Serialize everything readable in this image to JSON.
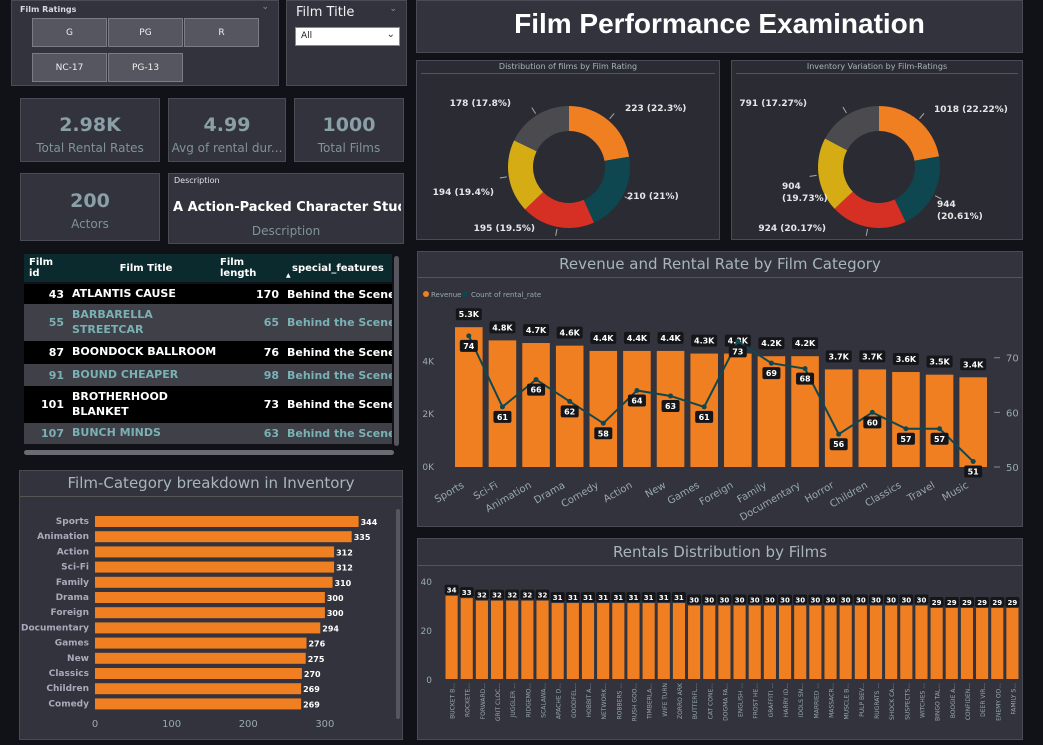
{
  "slicer": {
    "title": "Film Ratings",
    "options": [
      "G",
      "PG",
      "R",
      "NC-17",
      "PG-13"
    ]
  },
  "film_title_filter": {
    "title": "Film Title",
    "selected": "All"
  },
  "main_title": "Film Performance Examination",
  "cards": {
    "rental_rates": {
      "value": "2.98K",
      "label": "Total Rental Rates"
    },
    "avg_duration": {
      "value": "4.99",
      "label": "Avg of rental dur..."
    },
    "total_films": {
      "value": "1000",
      "label": "Total Films"
    },
    "actors": {
      "value": "200",
      "label": "Actors"
    },
    "description": {
      "header": "Description",
      "value": "A Action-Packed Character Stud...",
      "label": "Description"
    }
  },
  "table": {
    "columns": [
      "Film id",
      "Film Title",
      "Film length",
      "special_features"
    ],
    "rows": [
      {
        "id": "43",
        "title": "ATLANTIS CAUSE",
        "length": "170",
        "features": "Behind the Scenes"
      },
      {
        "id": "55",
        "title": "BARBARELLA STREETCAR",
        "length": "65",
        "features": "Behind the Scenes"
      },
      {
        "id": "87",
        "title": "BOONDOCK BALLROOM",
        "length": "76",
        "features": "Behind the Scenes"
      },
      {
        "id": "91",
        "title": "BOUND CHEAPER",
        "length": "98",
        "features": "Behind the Scenes"
      },
      {
        "id": "101",
        "title": "BROTHERHOOD BLANKET",
        "length": "73",
        "features": "Behind the Scenes"
      },
      {
        "id": "107",
        "title": "BUNCH MINDS",
        "length": "63",
        "features": "Behind the Scenes"
      }
    ]
  },
  "colors": {
    "orange": "#f07f21",
    "teal": "#0e4750",
    "red": "#d63024",
    "yellow": "#d6ac15",
    "gray": "#4b4b4f"
  },
  "chart_data": [
    {
      "type": "pie",
      "title": "Distribution of films by Film Rating",
      "values": [
        223,
        210,
        195,
        194,
        178
      ],
      "labels": [
        "223 (22.3%)",
        "210 (21%)",
        "195 (19.5%)",
        "194 (19.4%)",
        "178 (17.8%)"
      ]
    },
    {
      "type": "pie",
      "title": "Inventory Variation by Film-Ratings",
      "values": [
        1018,
        944,
        924,
        904,
        791
      ],
      "labels": [
        "1018 (22.22%)",
        "944 (20.61%)",
        "924 (20.17%)",
        "904 (19.73%)",
        "791 (17.27%)"
      ]
    },
    {
      "type": "bar",
      "title": "Revenue and Rental Rate by Film Category",
      "legend": [
        "Revenue",
        "Count of rental_rate"
      ],
      "categories": [
        "Sports",
        "Sci-Fi",
        "Animation",
        "Drama",
        "Comedy",
        "Action",
        "New",
        "Games",
        "Foreign",
        "Family",
        "Documentary",
        "Horror",
        "Children",
        "Classics",
        "Travel",
        "Music"
      ],
      "series": [
        {
          "name": "Revenue",
          "values": [
            5300,
            4800,
            4700,
            4600,
            4400,
            4400,
            4400,
            4300,
            4300,
            4200,
            4200,
            3700,
            3700,
            3600,
            3500,
            3400
          ],
          "labels": [
            "5.3K",
            "4.8K",
            "4.7K",
            "4.6K",
            "4.4K",
            "4.4K",
            "4.4K",
            "4.3K",
            "4.3K",
            "4.2K",
            "4.2K",
            "3.7K",
            "3.7K",
            "3.6K",
            "3.5K",
            "3.4K"
          ]
        },
        {
          "name": "Count of rental_rate",
          "values": [
            74,
            61,
            66,
            62,
            58,
            64,
            63,
            61,
            73,
            69,
            68,
            56,
            60,
            57,
            57,
            51
          ]
        }
      ],
      "y_ticks": [
        "0K",
        "2K",
        "4K"
      ],
      "y2_ticks": [
        "50",
        "60",
        "70"
      ],
      "ylim": [
        0,
        5800
      ],
      "y2lim": [
        50,
        78
      ]
    },
    {
      "type": "bar",
      "title": "Film-Category breakdown in Inventory",
      "categories": [
        "Sports",
        "Animation",
        "Action",
        "Sci-Fi",
        "Family",
        "Drama",
        "Foreign",
        "Documentary",
        "Games",
        "New",
        "Classics",
        "Children",
        "Comedy"
      ],
      "values": [
        344,
        335,
        312,
        312,
        310,
        300,
        300,
        294,
        276,
        275,
        270,
        269,
        269
      ],
      "x_ticks": [
        "0",
        "100",
        "200",
        "300"
      ],
      "xlim": [
        0,
        385
      ]
    },
    {
      "type": "bar",
      "title": "Rentals Distribution by Films",
      "categories": [
        "BUCKET B...",
        "ROCKETE...",
        "FORWARD...",
        "GRIT CLOC...",
        "JUGGLER ...",
        "RIDGEMO...",
        "SCALAWA...",
        "APACHE D...",
        "GOODFEL...",
        "HOBBIT A...",
        "NETWORK...",
        "ROBBERS ...",
        "RUSH GOO...",
        "TIMBERLA...",
        "WIFE TURN",
        "ZORRO ARK",
        "BUTTERFL...",
        "CAT CONE...",
        "DOGMA FA...",
        "ENGLISH ...",
        "FROST HE...",
        "GRAFFITI ...",
        "HARRY ID...",
        "IDOLS SN...",
        "MARRIED ...",
        "MASSACR...",
        "MUSCLE B...",
        "PULP BEV...",
        "RUGRATS ...",
        "SHOCK CA...",
        "SUSPECTS...",
        "WITCHES ...",
        "BINGO TAL...",
        "BOOGIE A...",
        "CONFIDEN...",
        "DEER VIR...",
        "ENEMY OD...",
        "FAMILY S..."
      ],
      "values": [
        34,
        33,
        32,
        32,
        32,
        32,
        32,
        31,
        31,
        31,
        31,
        31,
        31,
        31,
        31,
        31,
        30,
        30,
        30,
        30,
        30,
        30,
        30,
        30,
        30,
        30,
        30,
        30,
        30,
        30,
        30,
        30,
        29,
        29,
        29,
        29,
        29,
        29
      ],
      "y_ticks": [
        "0",
        "20",
        "40"
      ],
      "ylim": [
        0,
        40
      ]
    }
  ]
}
